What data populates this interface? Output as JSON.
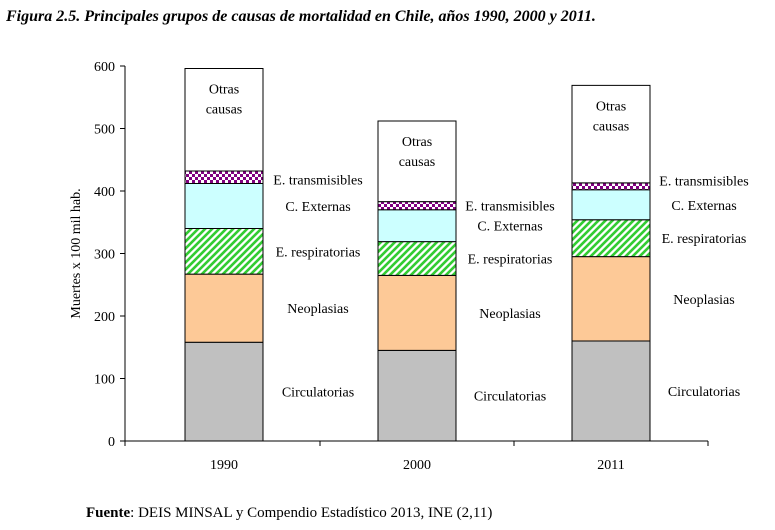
{
  "title": "Figura 2.5. Principales grupos de causas de mortalidad en Chile, años 1990, 2000 y 2011.",
  "source": {
    "label": "Fuente",
    "text": ": DEIS MINSAL y Compendio Estadístico 2013, INE (2,11)"
  },
  "chart_data": {
    "type": "bar",
    "stacked": true,
    "title": "Figura 2.5. Principales grupos de causas de mortalidad en Chile, años 1990, 2000 y 2011.",
    "xlabel": "",
    "ylabel": "Muertes x 100 mil hab.",
    "ylim": [
      0,
      600
    ],
    "yticks": [
      0,
      100,
      200,
      300,
      400,
      500,
      600
    ],
    "grid": false,
    "legend": "none (labels inside/beside bars)",
    "categories": [
      "1990",
      "2000",
      "2011"
    ],
    "series": [
      {
        "name": "Circulatorias",
        "values": [
          158,
          145,
          160
        ],
        "color": "#c0c0c0",
        "pattern": "solid"
      },
      {
        "name": "Neoplasias",
        "values": [
          109,
          120,
          135
        ],
        "color": "#fdc997",
        "pattern": "solid"
      },
      {
        "name": "E. respiratorias",
        "values": [
          73,
          54,
          59
        ],
        "color": "#33cc33",
        "pattern": "diagonal-hatch"
      },
      {
        "name": "C. Externas",
        "values": [
          72,
          51,
          48
        ],
        "color": "#ccffff",
        "pattern": "solid"
      },
      {
        "name": "E. transmisibles",
        "values": [
          20,
          13,
          11
        ],
        "color": "#800080",
        "pattern": "checker"
      },
      {
        "name": "Otras causas",
        "values": [
          164,
          129,
          156
        ],
        "color": "#ffffff",
        "pattern": "solid"
      }
    ],
    "segment_labels": [
      [
        "Circulatorias",
        "Neoplasias",
        "E. respiratorias",
        "C. Externas",
        "E. transmisibles",
        [
          "Otras",
          "causas"
        ]
      ],
      [
        "Circulatorias",
        "Neoplasias",
        "E. respiratorias",
        "C. Externas",
        "E. transmisibles",
        [
          "Otras",
          "causas"
        ]
      ],
      [
        "Circulatorias",
        "Neoplasias",
        "E. respiratorias",
        "C. Externas",
        "E. transmisibles",
        [
          "Otras",
          "causas"
        ]
      ]
    ]
  }
}
